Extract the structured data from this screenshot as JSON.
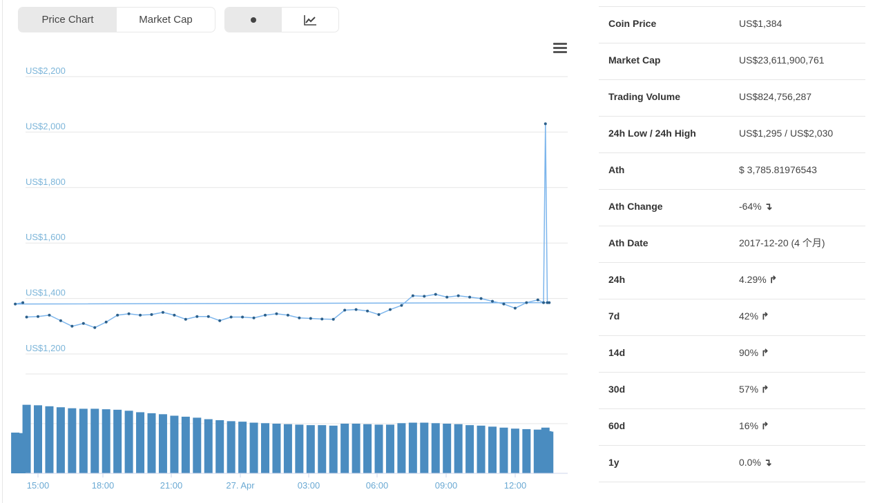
{
  "tabs": [
    {
      "label": "Price Chart",
      "active": true
    },
    {
      "label": "Market Cap",
      "active": false
    }
  ],
  "modes": [
    {
      "icon": "dot-icon",
      "active": true
    },
    {
      "icon": "line-chart-icon",
      "active": false
    }
  ],
  "menu_icon": "hamburger-menu-icon",
  "colors": {
    "price": "#2b5f8a",
    "spike": "#7cb5ec",
    "volume": "#4a8cc0",
    "up": "#4caf1f",
    "down": "#e74c5b"
  },
  "chart_data": {
    "type": "line",
    "y_ticks": [
      "US$1,200",
      "US$1,400",
      "US$1,600",
      "US$1,800",
      "US$2,000",
      "US$2,200"
    ],
    "y_tick_values": [
      1200,
      1400,
      1600,
      1800,
      2000,
      2200
    ],
    "ylim": [
      1200,
      2200
    ],
    "x_ticks": [
      "15:00",
      "18:00",
      "21:00",
      "27. Apr",
      "03:00",
      "06:00",
      "09:00",
      "12:00"
    ],
    "grid": true,
    "x": [
      "14:30",
      "15:00",
      "15:30",
      "16:00",
      "16:30",
      "17:00",
      "17:30",
      "18:00",
      "18:30",
      "19:00",
      "19:30",
      "20:00",
      "20:30",
      "21:00",
      "21:30",
      "22:00",
      "22:30",
      "23:00",
      "23:30",
      "00:00",
      "00:30",
      "01:00",
      "01:30",
      "02:00",
      "02:30",
      "03:00",
      "03:30",
      "04:00",
      "04:30",
      "05:00",
      "05:30",
      "06:00",
      "06:30",
      "07:00",
      "07:30",
      "08:00",
      "08:30",
      "09:00",
      "09:30",
      "10:00",
      "10:30",
      "11:00",
      "11:30",
      "12:00",
      "12:30",
      "13:00",
      "13:15",
      "13:20",
      "13:25",
      "13:30",
      "14:00",
      "14:20"
    ],
    "price": [
      1333,
      1335,
      1340,
      1320,
      1300,
      1310,
      1295,
      1315,
      1340,
      1345,
      1340,
      1342,
      1350,
      1340,
      1325,
      1335,
      1335,
      1320,
      1333,
      1333,
      1330,
      1340,
      1345,
      1340,
      1330,
      1328,
      1326,
      1325,
      1358,
      1360,
      1355,
      1342,
      1360,
      1375,
      1410,
      1408,
      1415,
      1405,
      1410,
      1405,
      1400,
      1390,
      1380,
      1365,
      1385,
      1395,
      1385,
      2030,
      1385,
      1385,
      1380,
      1385
    ],
    "volume_relative": [
      1.38,
      1.37,
      1.35,
      1.33,
      1.31,
      1.3,
      1.3,
      1.29,
      1.28,
      1.26,
      1.23,
      1.21,
      1.19,
      1.16,
      1.14,
      1.12,
      1.09,
      1.07,
      1.05,
      1.04,
      1.02,
      1.01,
      1.0,
      0.99,
      0.98,
      0.97,
      0.97,
      0.96,
      1.0,
      1.0,
      0.99,
      0.98,
      0.98,
      1.01,
      1.02,
      1.02,
      1.01,
      1.0,
      0.99,
      0.97,
      0.96,
      0.94,
      0.92,
      0.9,
      0.89,
      0.88,
      0.87,
      0.92,
      0.85,
      0.84,
      0.82,
      0.81
    ]
  },
  "stats": [
    {
      "label": "Coin Price",
      "value": "US$1,384"
    },
    {
      "label": "Market Cap",
      "value": "US$23,611,900,761"
    },
    {
      "label": "Trading Volume",
      "value": "US$824,756,287"
    },
    {
      "label": "24h Low / 24h High",
      "value": "US$1,295 / US$2,030"
    },
    {
      "label": "Ath",
      "value": "$ 3,785.81976543"
    },
    {
      "label": "Ath Change",
      "value": "-64%",
      "trend": "down",
      "arrow": "↴"
    },
    {
      "label": "Ath Date",
      "value": "2017-12-20 (4 个月)"
    },
    {
      "label": "24h",
      "value": "4.29%",
      "trend": "up",
      "arrow": "↱"
    },
    {
      "label": "7d",
      "value": "42%",
      "trend": "up",
      "arrow": "↱"
    },
    {
      "label": "14d",
      "value": "90%",
      "trend": "up",
      "arrow": "↱"
    },
    {
      "label": "30d",
      "value": "57%",
      "trend": "up",
      "arrow": "↱"
    },
    {
      "label": "60d",
      "value": "16%",
      "trend": "up",
      "arrow": "↱"
    },
    {
      "label": "1y",
      "value": "0.0%",
      "trend": "down",
      "arrow": "↴"
    }
  ]
}
